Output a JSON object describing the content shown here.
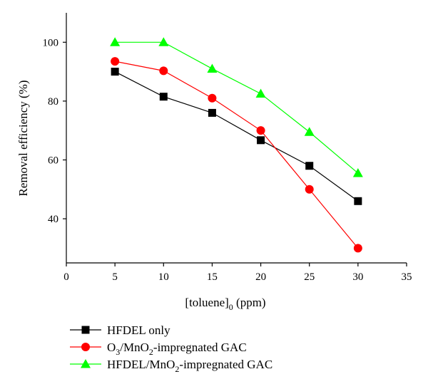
{
  "chart_data": {
    "type": "line",
    "xlabel": "[toluene]",
    "xlabel_sub": "0",
    "xlabel_unit": " (ppm)",
    "ylabel": "Removal efficiency (%)",
    "xlim": [
      0,
      35
    ],
    "ylim": [
      25,
      110
    ],
    "x_ticks": [
      0,
      5,
      10,
      15,
      20,
      25,
      30,
      35
    ],
    "y_ticks": [
      40,
      60,
      80,
      100
    ],
    "grid": false,
    "legend_position": "bottom-left, below plot",
    "series": [
      {
        "key": "hfdel",
        "name": "HFDEL only",
        "name_parts": [
          {
            "t": "HFDEL only"
          }
        ],
        "marker": "square",
        "color": "#000000",
        "x": [
          5,
          10,
          15,
          20,
          25,
          30
        ],
        "values": [
          90,
          81.5,
          76,
          66.7,
          58,
          46
        ]
      },
      {
        "key": "o3",
        "name": "O3/MnO2-impregnated GAC",
        "name_parts": [
          {
            "t": "O"
          },
          {
            "t": "3",
            "sub": true
          },
          {
            "t": "/MnO"
          },
          {
            "t": "2",
            "sub": true
          },
          {
            "t": "-impregnated GAC"
          }
        ],
        "marker": "circle",
        "color": "#ff0000",
        "x": [
          5,
          10,
          15,
          20,
          25,
          30
        ],
        "values": [
          93.5,
          90.3,
          81,
          70,
          50,
          30
        ]
      },
      {
        "key": "hfdel_mno2",
        "name": "HFDEL/MnO2-impregnated GAC",
        "name_parts": [
          {
            "t": "HFDEL/MnO"
          },
          {
            "t": "2",
            "sub": true
          },
          {
            "t": "-impregnated GAC"
          }
        ],
        "marker": "triangle",
        "color": "#00ff00",
        "x": [
          5,
          10,
          15,
          20,
          25,
          30
        ],
        "values": [
          100,
          100,
          91,
          82.5,
          69.5,
          55.5
        ]
      }
    ]
  }
}
